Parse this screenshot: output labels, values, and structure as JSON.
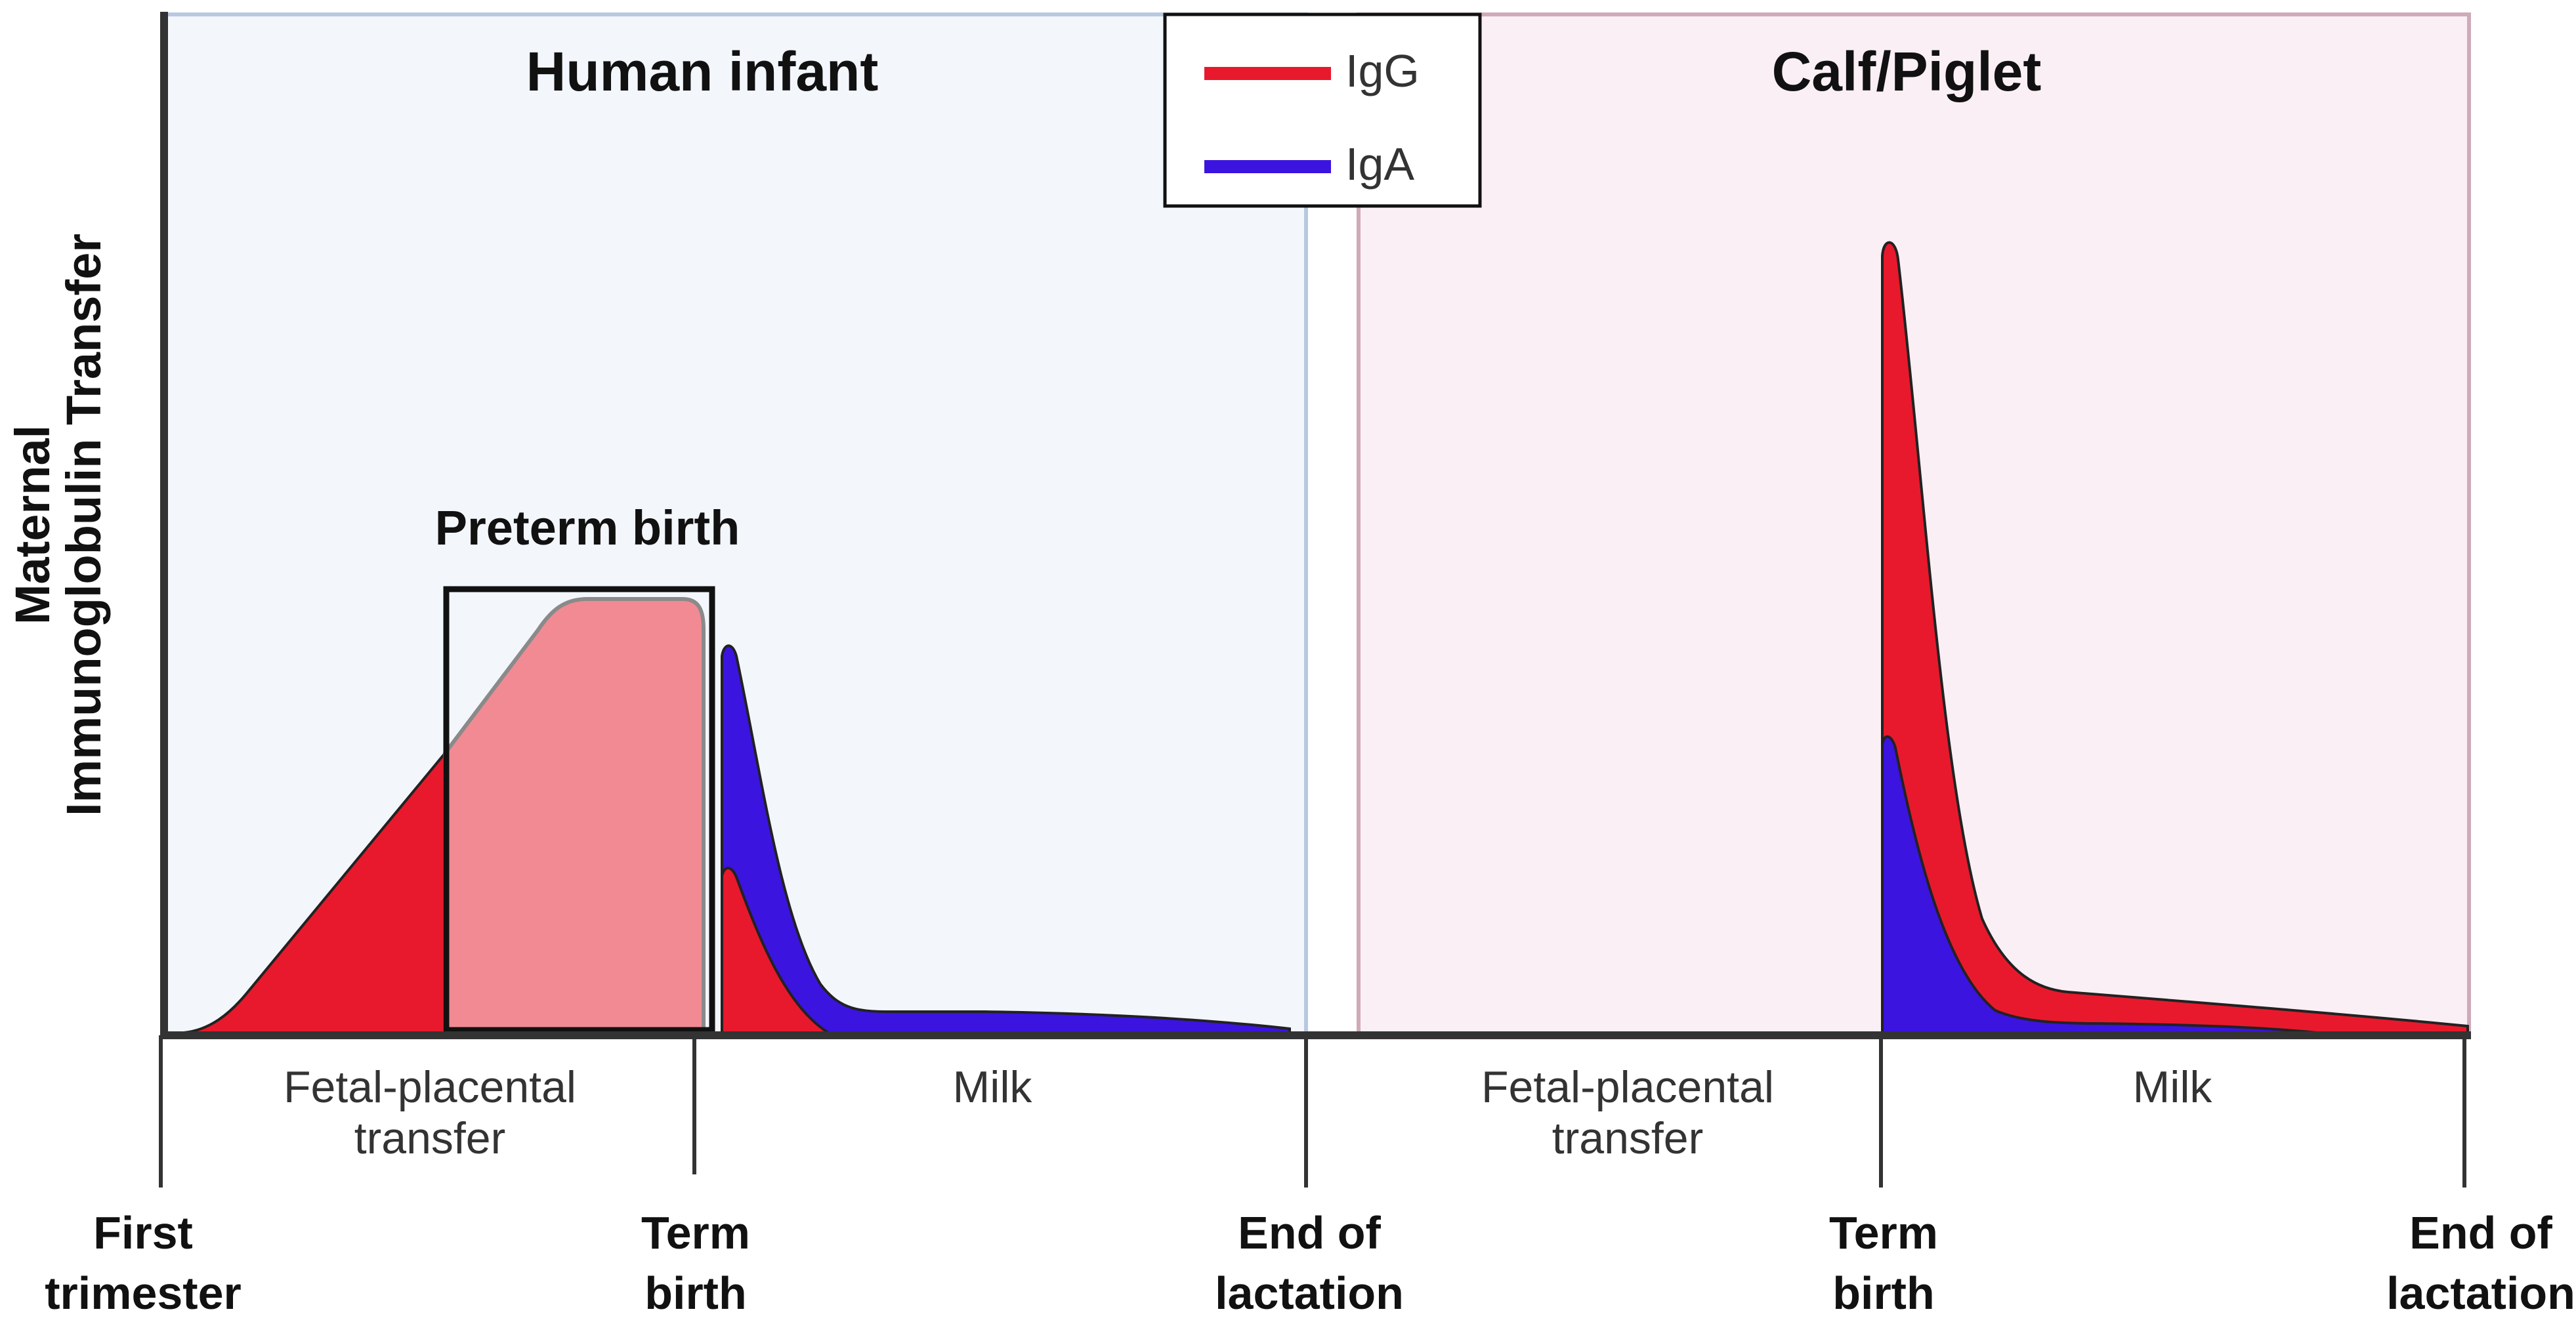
{
  "y_axis_label": [
    "Maternal",
    "Immunoglobulin Transfer"
  ],
  "legend": {
    "items": [
      {
        "name": "IgG",
        "color": "#e8192c"
      },
      {
        "name": "IgA",
        "color": "#3b14e0"
      }
    ]
  },
  "panels": {
    "human": {
      "title": "Human infant",
      "preterm_label": "Preterm birth",
      "phase_labels": [
        [
          "Fetal-placental",
          "transfer"
        ],
        [
          "Milk"
        ]
      ]
    },
    "animal": {
      "title": "Calf/Piglet",
      "phase_labels": [
        [
          "Fetal-placental",
          "transfer"
        ],
        [
          "Milk"
        ]
      ]
    }
  },
  "timeline_labels": [
    [
      "First",
      "trimester"
    ],
    [
      "Term",
      "birth"
    ],
    [
      "End of",
      "lactation"
    ],
    [
      "Term",
      "birth"
    ],
    [
      "End of",
      "lactation"
    ]
  ],
  "colors": {
    "igg": "#e8192c",
    "iga": "#3b14e0",
    "igg_preterm": "#f28a93",
    "human_bg": "#f3f6fb",
    "human_border": "#b8c8df",
    "animal_bg": "#faeff5",
    "animal_border": "#cfaab8"
  }
}
